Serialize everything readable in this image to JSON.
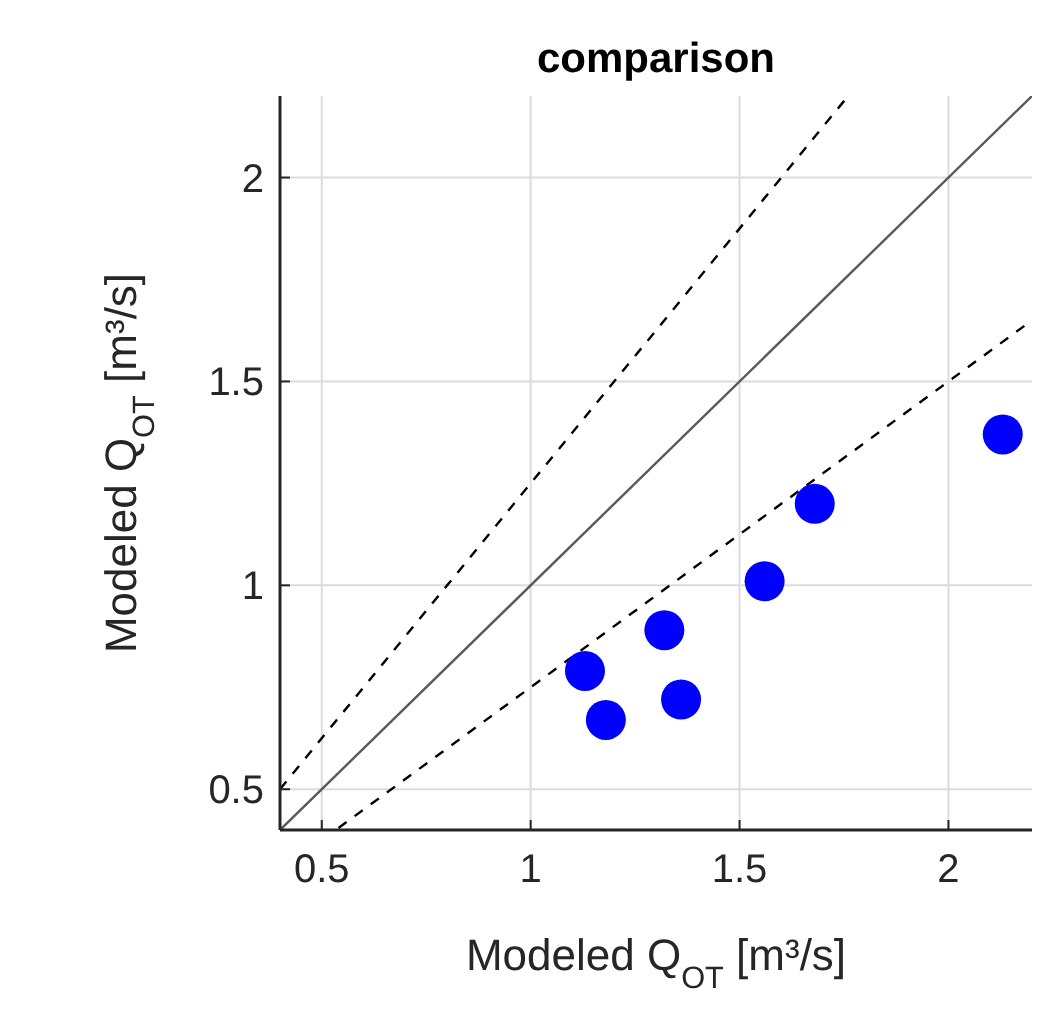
{
  "chart_data": {
    "type": "scatter",
    "title": "comparison",
    "xlabel": "Modeled Q$_{OT}$ [m³/s]",
    "ylabel": "Modeled Q$_{OT}$ [m³/s]",
    "x": [
      1.13,
      1.18,
      1.32,
      1.36,
      1.56,
      1.68,
      2.13
    ],
    "xlim": [
      0.4,
      2.2
    ],
    "ylim": [
      0.4,
      2.2
    ],
    "xticks": [
      0.5,
      1,
      1.5,
      2
    ],
    "yticks": [
      0.5,
      1,
      1.5,
      2
    ],
    "grid": true,
    "marker": "circle",
    "series": [
      {
        "type": "line",
        "x": [
          0.4,
          1.76
        ],
        "values": [
          0.5,
          2.2
        ],
        "color": "#000000",
        "line_style": "dashed",
        "marker": "none"
      },
      {
        "type": "line",
        "x": [
          0.4,
          2.2
        ],
        "values": [
          0.4,
          2.2
        ],
        "color": "#595959",
        "line_style": "solid",
        "marker": "none"
      },
      {
        "type": "line",
        "x": [
          0.54,
          2.2
        ],
        "values": [
          0.405,
          1.65
        ],
        "color": "#000000",
        "line_style": "dashed",
        "marker": "none"
      },
      {
        "color": "#0000ff",
        "values": [
          0.79,
          0.67,
          0.89,
          0.72,
          1.01,
          1.2,
          1.37
        ]
      }
    ]
  }
}
